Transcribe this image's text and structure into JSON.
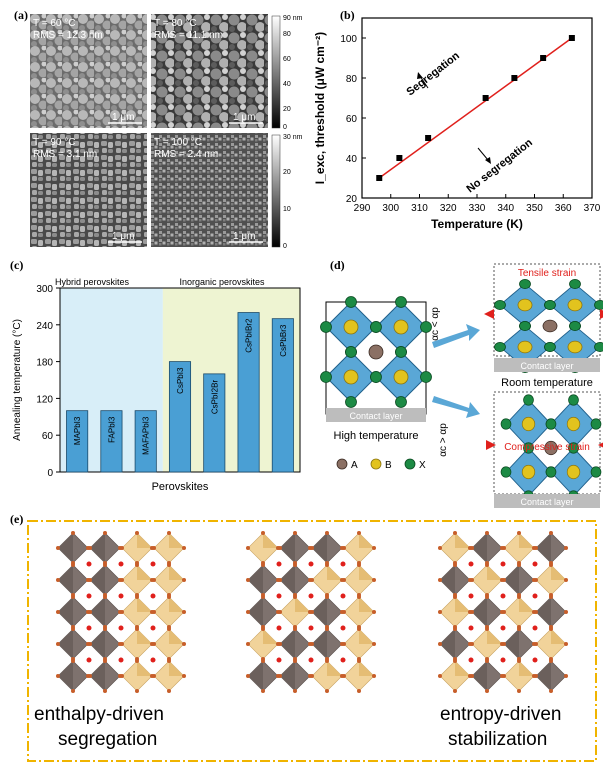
{
  "panels": {
    "a": {
      "label": "(a)",
      "images": [
        {
          "temp": "T = 60 °C",
          "rms": "RMS = 12.3 nm",
          "scale": "1 μm"
        },
        {
          "temp": "T = 80 °C",
          "rms": "RMS = 11.1 nm",
          "scale": "1 μm"
        },
        {
          "temp": "T = 90 °C",
          "rms": "RMS = 3.1 nm",
          "scale": "1 μm"
        },
        {
          "temp": "T = 100 °C",
          "rms": "RMS = 2.4 nm",
          "scale": "1 μm"
        }
      ],
      "colorbar_top": {
        "ticks": [
          "90 nm",
          "80",
          "60",
          "40",
          "20",
          "0"
        ]
      },
      "colorbar_bottom": {
        "ticks": [
          "30 nm",
          "20",
          "10",
          "0"
        ]
      }
    },
    "b": {
      "label": "(b)",
      "annotation_up": "Segregation",
      "annotation_down": "No segregation"
    },
    "c": {
      "label": "(c)",
      "region_left": "Hybrid perovskites",
      "region_right": "Inorganic perovskites"
    },
    "d": {
      "label": "(d)",
      "tensile": "Tensile strain",
      "compressive": "Compressive strain",
      "contact": "Contact layer",
      "room_temp": "Room temperature",
      "high_temp": "High temperature",
      "arrow_top": "αc < αp",
      "arrow_bottom": "αc > αp",
      "legend": [
        "A",
        "B",
        "X"
      ]
    },
    "e": {
      "label": "(e)",
      "left_caption": [
        "enthalpy-driven",
        "segregation"
      ],
      "right_caption": [
        "entropy-driven",
        "stabilization"
      ]
    }
  },
  "chart_data": [
    {
      "panel": "b",
      "type": "line",
      "xlabel": "Temperature (K)",
      "ylabel": "I_exc, threshold (μW cm⁻²)",
      "xlim": [
        290,
        370
      ],
      "ylim": [
        20,
        110
      ],
      "xticks": [
        290,
        300,
        310,
        320,
        330,
        340,
        350,
        360,
        370
      ],
      "yticks": [
        20,
        40,
        60,
        80,
        100
      ],
      "points": {
        "x": [
          296,
          303,
          313,
          333,
          343,
          353,
          363
        ],
        "y": [
          30,
          40,
          50,
          70,
          80,
          90,
          100
        ]
      },
      "fit": {
        "x": [
          296,
          363
        ],
        "y": [
          30,
          100
        ],
        "color": "#e0201c"
      }
    },
    {
      "panel": "c",
      "type": "bar",
      "ylabel": "Annealing temperature (°C)",
      "xlabel": "Perovskites",
      "ylim": [
        0,
        300
      ],
      "yticks": [
        0,
        60,
        120,
        180,
        240,
        300
      ],
      "categories": [
        "MAPbI3",
        "FAPbI3",
        "MAFAPbI3",
        "CsPbI3",
        "CsPbI2Br",
        "CsPbIBr2",
        "CsPbBr3"
      ],
      "values": [
        100,
        100,
        100,
        180,
        160,
        260,
        250
      ],
      "bar_color": "#4a9fd4"
    }
  ]
}
